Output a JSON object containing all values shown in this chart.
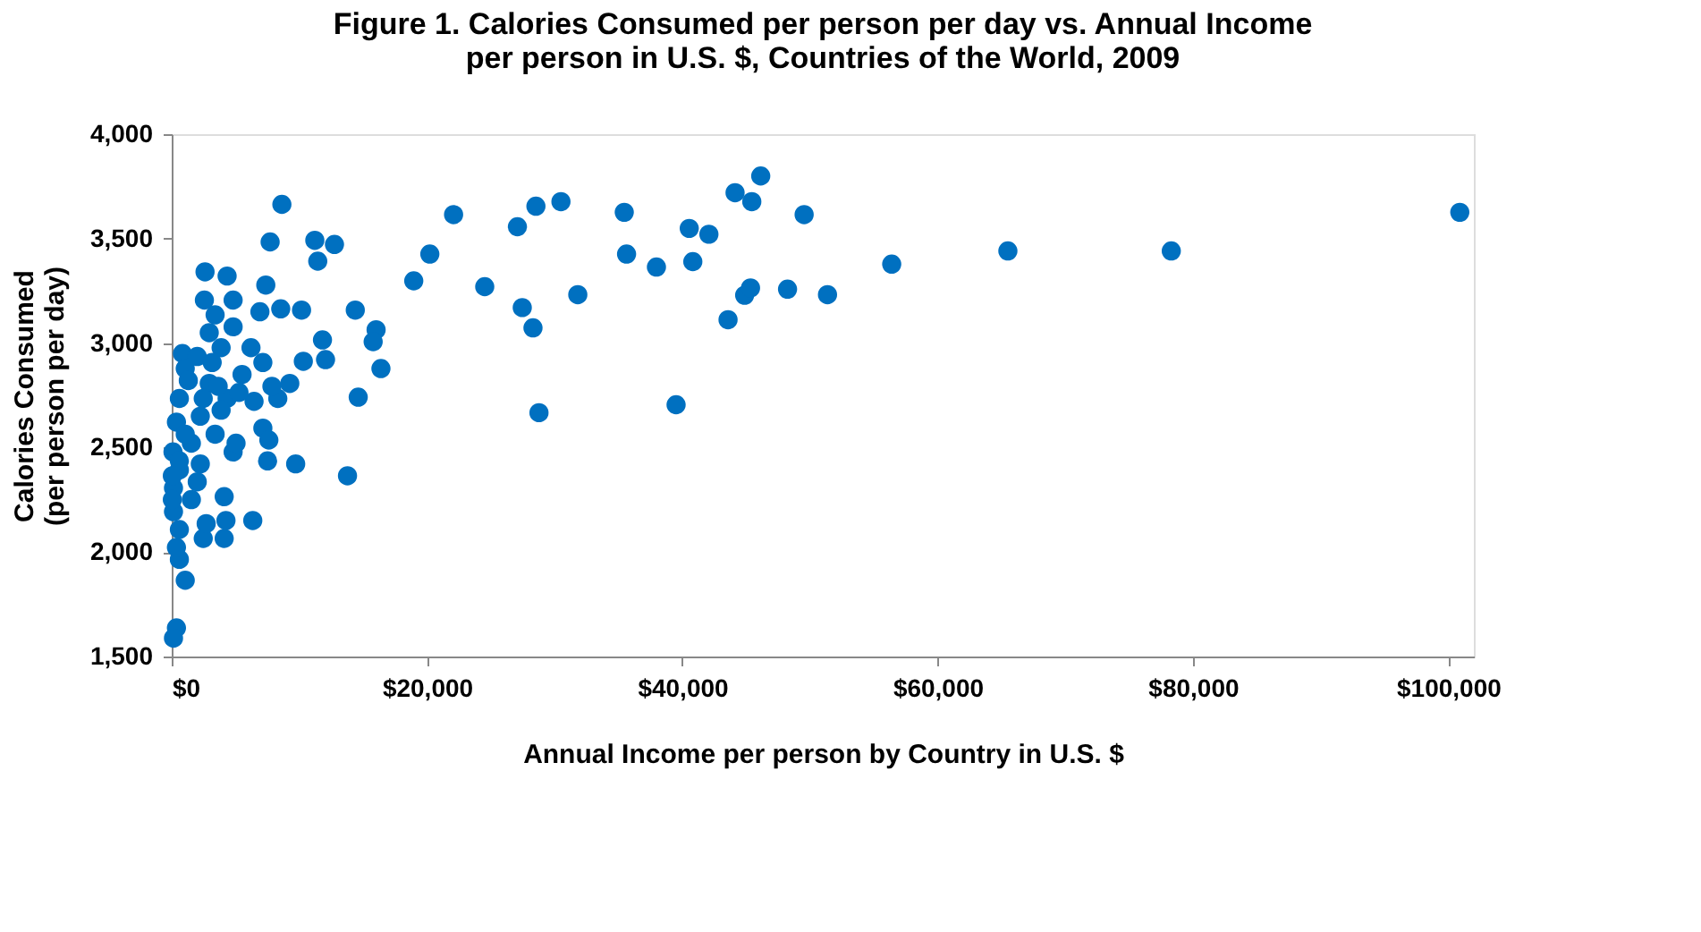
{
  "chart_data": {
    "type": "scatter",
    "title": "Figure 1. Calories Consumed per person per day vs. Annual Income\nper person in U.S. $, Countries of the World, 2009",
    "xlabel": "Annual Income per person by Country in U.S. $",
    "ylabel": "Calories  Consumed\n(per person per day)",
    "x": [
      100900,
      78300,
      65500,
      56400,
      18960,
      20220,
      22080,
      24520,
      27080,
      28530,
      30490,
      27460,
      28300,
      31810,
      28770,
      35450,
      35630,
      37970,
      39510,
      40540,
      42080,
      40820,
      44130,
      46140,
      45440,
      49540,
      43580,
      44880,
      45340,
      48240,
      51370,
      8630,
      7710,
      11210,
      12750,
      11440,
      2610,
      4340,
      2560,
      7370,
      4810,
      8540,
      10170,
      6910,
      14380,
      16010,
      15780,
      16390,
      11810,
      12050,
      10310,
      9250,
      8310,
      14610,
      7140,
      7610,
      7510,
      9710,
      13770,
      4810,
      6350,
      4110,
      4250,
      4110,
      2470,
      600,
      1060,
      370,
      140,
      840,
      1060,
      3870,
      6210,
      7140,
      5510,
      2940,
      4340,
      6450,
      2240,
      370,
      3400,
      1540,
      5040,
      100,
      600,
      2240,
      140,
      1540,
      140,
      2700,
      600,
      370,
      3400,
      4810,
      2940,
      2000,
      1300,
      3170,
      600,
      2470,
      1060,
      600,
      2000,
      50,
      50,
      3640,
      5270,
      3870,
      7850
    ],
    "values": [
      3626,
      3441,
      3441,
      3378,
      3298,
      3426,
      3615,
      3270,
      3557,
      3655,
      3677,
      3170,
      3073,
      3232,
      2667,
      3626,
      3426,
      3364,
      2705,
      3549,
      3521,
      3390,
      3720,
      3800,
      3677,
      3615,
      3112,
      3229,
      3264,
      3258,
      3232,
      3664,
      3484,
      3492,
      3472,
      3392,
      3341,
      3321,
      3206,
      3278,
      3206,
      3164,
      3158,
      3150,
      3158,
      3064,
      3007,
      2878,
      3015,
      2921,
      2913,
      2807,
      2735,
      2741,
      2593,
      2536,
      2436,
      2422,
      2365,
      2479,
      2151,
      2265,
      2151,
      2065,
      2065,
      1965,
      1865,
      1637,
      1588,
      2950,
      2878,
      2978,
      2978,
      2907,
      2850,
      2807,
      2735,
      2721,
      2650,
      2622,
      2564,
      2521,
      2521,
      2479,
      2393,
      2422,
      2307,
      2251,
      2193,
      2136,
      2108,
      2022,
      3135,
      3078,
      3050,
      2936,
      2821,
      2907,
      2735,
      2735,
      2564,
      2436,
      2336,
      2365,
      2251,
      2793,
      2764,
      2679,
      2793
    ],
    "color": "#0070c0",
    "marker": "circle",
    "grid": false,
    "xlim": [
      0,
      102000
    ],
    "ylim": [
      1500,
      4000
    ],
    "xticks": [
      {
        "value": 0,
        "label": "$0"
      },
      {
        "value": 20000,
        "label": "$20,000"
      },
      {
        "value": 40000,
        "label": "$40,000"
      },
      {
        "value": 60000,
        "label": "$60,000"
      },
      {
        "value": 80000,
        "label": "$80,000"
      },
      {
        "value": 100000,
        "label": "$100,000"
      }
    ],
    "yticks": [
      {
        "value": 1500,
        "label": "1,500"
      },
      {
        "value": 2000,
        "label": "2,000"
      },
      {
        "value": 2500,
        "label": "2,500"
      },
      {
        "value": 3000,
        "label": "3,000"
      },
      {
        "value": 3500,
        "label": "3,500"
      },
      {
        "value": 4000,
        "label": "4,000"
      }
    ]
  }
}
